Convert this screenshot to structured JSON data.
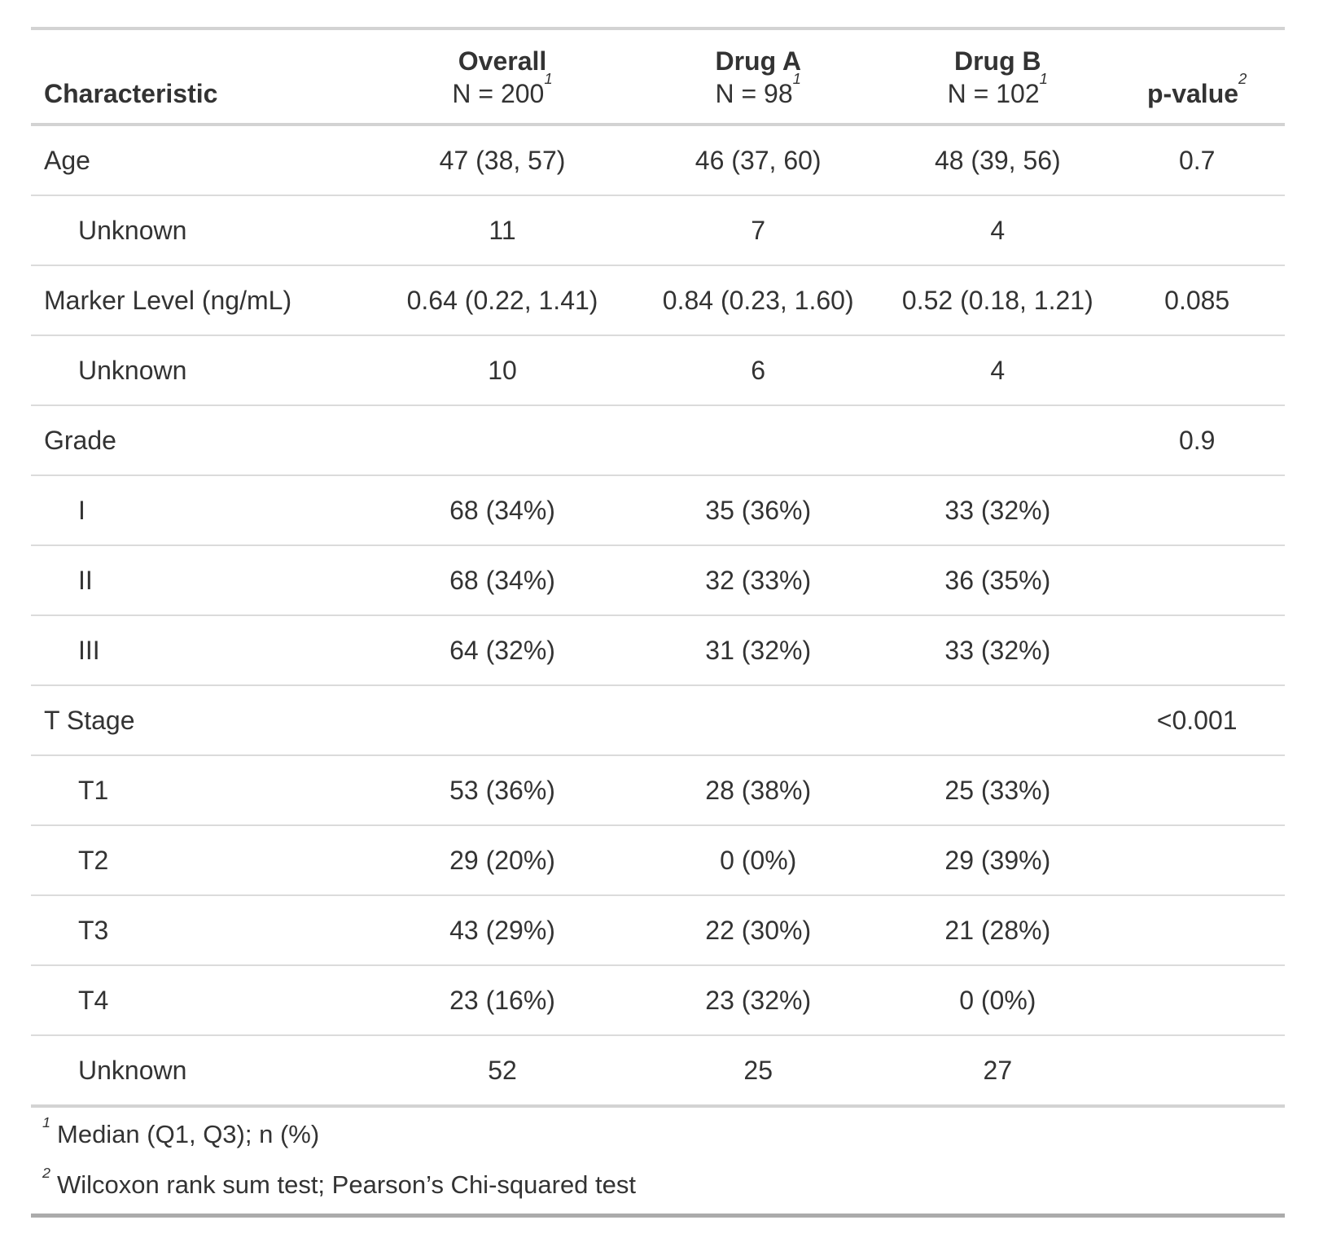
{
  "chart_data": {
    "type": "table",
    "header": {
      "characteristic": "Characteristic",
      "groups": [
        {
          "label": "Overall",
          "n": "N = 200",
          "footnote_mark": "1"
        },
        {
          "label": "Drug A",
          "n": "N = 98",
          "footnote_mark": "1"
        },
        {
          "label": "Drug B",
          "n": "N = 102",
          "footnote_mark": "1"
        }
      ],
      "p_value": {
        "label": "p-value",
        "footnote_mark": "2"
      }
    },
    "rows": [
      {
        "label": "Age",
        "indent": false,
        "values": [
          "47 (38, 57)",
          "46 (37, 60)",
          "48 (39, 56)"
        ],
        "p_value": "0.7"
      },
      {
        "label": "Unknown",
        "indent": true,
        "values": [
          "11",
          "7",
          "4"
        ],
        "p_value": ""
      },
      {
        "label": "Marker Level (ng/mL)",
        "indent": false,
        "values": [
          "0.64 (0.22, 1.41)",
          "0.84 (0.23, 1.60)",
          "0.52 (0.18, 1.21)"
        ],
        "p_value": "0.085"
      },
      {
        "label": "Unknown",
        "indent": true,
        "values": [
          "10",
          "6",
          "4"
        ],
        "p_value": ""
      },
      {
        "label": "Grade",
        "indent": false,
        "values": [
          "",
          "",
          ""
        ],
        "p_value": "0.9"
      },
      {
        "label": "I",
        "indent": true,
        "values": [
          "68 (34%)",
          "35 (36%)",
          "33 (32%)"
        ],
        "p_value": ""
      },
      {
        "label": "II",
        "indent": true,
        "values": [
          "68 (34%)",
          "32 (33%)",
          "36 (35%)"
        ],
        "p_value": ""
      },
      {
        "label": "III",
        "indent": true,
        "values": [
          "64 (32%)",
          "31 (32%)",
          "33 (32%)"
        ],
        "p_value": ""
      },
      {
        "label": "T Stage",
        "indent": false,
        "values": [
          "",
          "",
          ""
        ],
        "p_value": "<0.001"
      },
      {
        "label": "T1",
        "indent": true,
        "values": [
          "53 (36%)",
          "28 (38%)",
          "25 (33%)"
        ],
        "p_value": ""
      },
      {
        "label": "T2",
        "indent": true,
        "values": [
          "29 (20%)",
          "0 (0%)",
          "29 (39%)"
        ],
        "p_value": ""
      },
      {
        "label": "T3",
        "indent": true,
        "values": [
          "43 (29%)",
          "22 (30%)",
          "21 (28%)"
        ],
        "p_value": ""
      },
      {
        "label": "T4",
        "indent": true,
        "values": [
          "23 (16%)",
          "23 (32%)",
          "0 (0%)"
        ],
        "p_value": ""
      },
      {
        "label": "Unknown",
        "indent": true,
        "values": [
          "52",
          "25",
          "27"
        ],
        "p_value": ""
      }
    ],
    "footnotes": [
      {
        "mark": "1",
        "text": "Median (Q1, Q3); n (%)"
      },
      {
        "mark": "2",
        "text": "Wilcoxon rank sum test; Pearson’s Chi-squared test"
      }
    ],
    "colors": {
      "text": "#333333",
      "border_light": "#D3D3D3",
      "border_row": "#DBDBDB",
      "border_bottom": "#ABABAB"
    }
  }
}
